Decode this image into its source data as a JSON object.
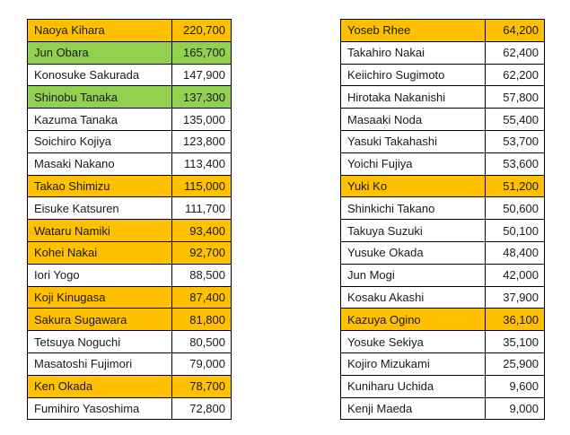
{
  "colors": {
    "orange": "#ffc000",
    "green": "#92d050",
    "none": "#ffffff"
  },
  "tables": {
    "left": [
      {
        "name": "Naoya Kihara",
        "value": "220,700",
        "highlight": "orange"
      },
      {
        "name": "Jun Obara",
        "value": "165,700",
        "highlight": "green"
      },
      {
        "name": "Konosuke Sakurada",
        "value": "147,900",
        "highlight": "none"
      },
      {
        "name": "Shinobu Tanaka",
        "value": "137,300",
        "highlight": "green"
      },
      {
        "name": "Kazuma Tanaka",
        "value": "135,000",
        "highlight": "none"
      },
      {
        "name": "Soichiro Kojiya",
        "value": "123,800",
        "highlight": "none"
      },
      {
        "name": "Masaki Nakano",
        "value": "113,400",
        "highlight": "none"
      },
      {
        "name": "Takao Shimizu",
        "value": "115,000",
        "highlight": "orange"
      },
      {
        "name": "Eisuke Katsuren",
        "value": "111,700",
        "highlight": "none"
      },
      {
        "name": "Wataru Namiki",
        "value": "93,400",
        "highlight": "orange"
      },
      {
        "name": "Kohei Nakai",
        "value": "92,700",
        "highlight": "orange"
      },
      {
        "name": "Iori Yogo",
        "value": "88,500",
        "highlight": "none"
      },
      {
        "name": "Koji Kinugasa",
        "value": "87,400",
        "highlight": "orange"
      },
      {
        "name": "Sakura Sugawara",
        "value": "81,800",
        "highlight": "orange"
      },
      {
        "name": "Tetsuya Noguchi",
        "value": "80,500",
        "highlight": "none"
      },
      {
        "name": "Masatoshi Fujimori",
        "value": "79,000",
        "highlight": "none"
      },
      {
        "name": "Ken Okada",
        "value": "78,700",
        "highlight": "orange"
      },
      {
        "name": "Fumihiro Yasoshima",
        "value": "72,800",
        "highlight": "none"
      }
    ],
    "right": [
      {
        "name": "Yoseb Rhee",
        "value": "64,200",
        "highlight": "orange"
      },
      {
        "name": "Takahiro Nakai",
        "value": "62,400",
        "highlight": "none"
      },
      {
        "name": "Keiichiro Sugimoto",
        "value": "62,200",
        "highlight": "none"
      },
      {
        "name": "Hirotaka Nakanishi",
        "value": "57,800",
        "highlight": "none"
      },
      {
        "name": "Masaaki Noda",
        "value": "55,400",
        "highlight": "none"
      },
      {
        "name": "Yasuki Takahashi",
        "value": "53,700",
        "highlight": "none"
      },
      {
        "name": "Yoichi Fujiya",
        "value": "53,600",
        "highlight": "none"
      },
      {
        "name": "Yuki Ko",
        "value": "51,200",
        "highlight": "orange"
      },
      {
        "name": "Shinkichi Takano",
        "value": "50,600",
        "highlight": "none"
      },
      {
        "name": "Takuya Suzuki",
        "value": "50,100",
        "highlight": "none"
      },
      {
        "name": "Yusuke Okada",
        "value": "48,400",
        "highlight": "none"
      },
      {
        "name": "Jun Mogi",
        "value": "42,000",
        "highlight": "none"
      },
      {
        "name": "Kosaku Akashi",
        "value": "37,900",
        "highlight": "none"
      },
      {
        "name": "Kazuya Ogino",
        "value": "36,100",
        "highlight": "orange"
      },
      {
        "name": "Yosuke Sekiya",
        "value": "35,100",
        "highlight": "none"
      },
      {
        "name": "Kojiro Mizukami",
        "value": "25,900",
        "highlight": "none"
      },
      {
        "name": "Kuniharu Uchida",
        "value": "9,600",
        "highlight": "none"
      },
      {
        "name": "Kenji Maeda",
        "value": "9,000",
        "highlight": "none"
      }
    ]
  }
}
